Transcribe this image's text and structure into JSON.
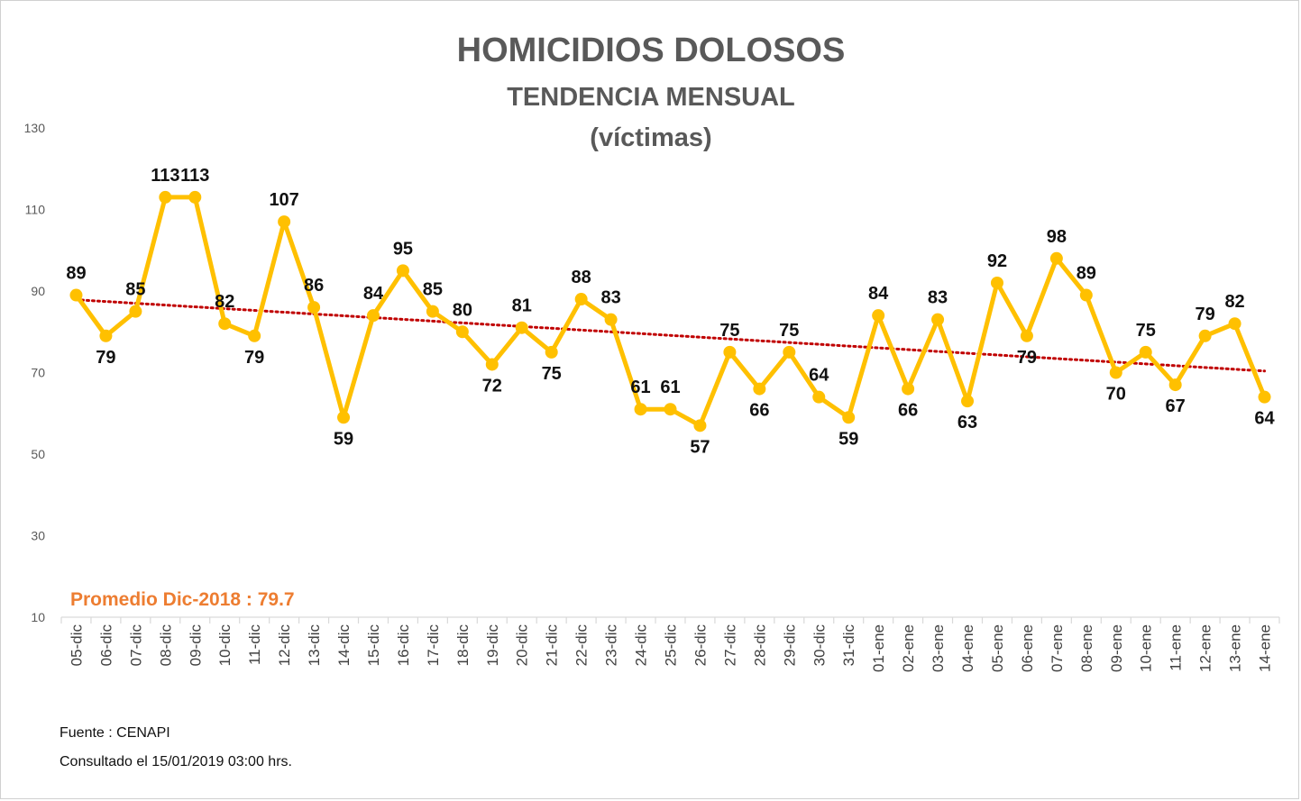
{
  "colors": {
    "series": "#FFC000",
    "trend": "#C00000",
    "average": "#ED7D31",
    "title": "#595959",
    "axis": "#D9D9D9"
  },
  "chart_data": {
    "type": "line",
    "title": "HOMICIDIOS DOLOSOS",
    "subtitle": "TENDENCIA MENSUAL",
    "subtitle2": "(víctimas)",
    "ylim": [
      10,
      130
    ],
    "yticks": [
      10,
      30,
      50,
      70,
      90,
      110,
      130
    ],
    "grid": false,
    "categories": [
      "05-dic",
      "06-dic",
      "07-dic",
      "08-dic",
      "09-dic",
      "10-dic",
      "11-dic",
      "12-dic",
      "13-dic",
      "14-dic",
      "15-dic",
      "16-dic",
      "17-dic",
      "18-dic",
      "19-dic",
      "20-dic",
      "21-dic",
      "22-dic",
      "23-dic",
      "24-dic",
      "25-dic",
      "26-dic",
      "27-dic",
      "28-dic",
      "29-dic",
      "30-dic",
      "31-dic",
      "01-ene",
      "02-ene",
      "03-ene",
      "04-ene",
      "05-ene",
      "06-ene",
      "07-ene",
      "08-ene",
      "09-ene",
      "10-ene",
      "11-ene",
      "12-ene",
      "13-ene",
      "14-ene"
    ],
    "series": [
      {
        "values": [
          89,
          79,
          85,
          113,
          113,
          82,
          79,
          107,
          86,
          59,
          84,
          95,
          85,
          80,
          72,
          81,
          75,
          88,
          83,
          61,
          61,
          57,
          75,
          66,
          75,
          64,
          59,
          84,
          66,
          83,
          63,
          92,
          79,
          98,
          89,
          70,
          75,
          67,
          79,
          82,
          64
        ]
      }
    ],
    "trendline": {
      "type": "linear",
      "style": "dotted"
    },
    "average_label": "Promedio Dic-2018 : 79.7",
    "source": "Fuente : CENAPI",
    "consulted": "Consultado el 15/01/2019  03:00 hrs."
  }
}
